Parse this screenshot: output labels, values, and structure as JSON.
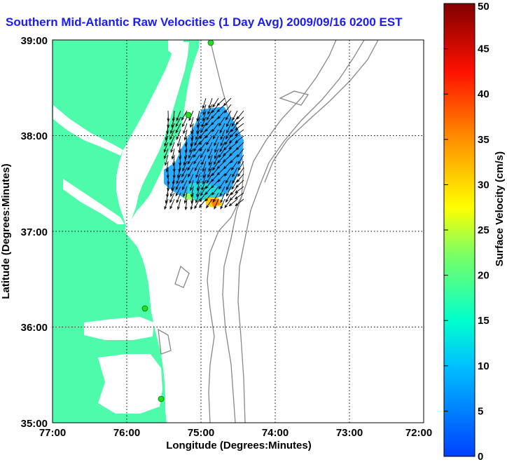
{
  "title": "Southern Mid-Atlantic Raw Velocities (1 Day Avg) 2009/09/16 0200 EST",
  "map": {
    "xlabel": "Longitude (Degrees:Minutes)",
    "ylabel": "Latitude (Degrees:Minutes)",
    "x_ticks": [
      "77:00",
      "76:00",
      "75:00",
      "74:00",
      "73:00",
      "72:00"
    ],
    "y_ticks": [
      "39:00",
      "38:00",
      "37:00",
      "36:00",
      "35:00"
    ],
    "grid": "dotted"
  },
  "colorbar": {
    "label": "Surface Velocity (cm/s)",
    "ticks": [
      "50",
      "45",
      "40",
      "35",
      "30",
      "25",
      "20",
      "15",
      "10",
      "5",
      "0"
    ],
    "range": [
      0,
      50
    ],
    "colormap": [
      "#0000ff",
      "#0080ff",
      "#00ffff",
      "#80ff80",
      "#ffff00",
      "#ff8000",
      "#ff0000",
      "#800000"
    ]
  },
  "colors": {
    "land": "#4dfbab",
    "water": "#ffffff",
    "title": "#1a1aff",
    "station": "#22dd22",
    "bathymetry": "#888888"
  }
}
